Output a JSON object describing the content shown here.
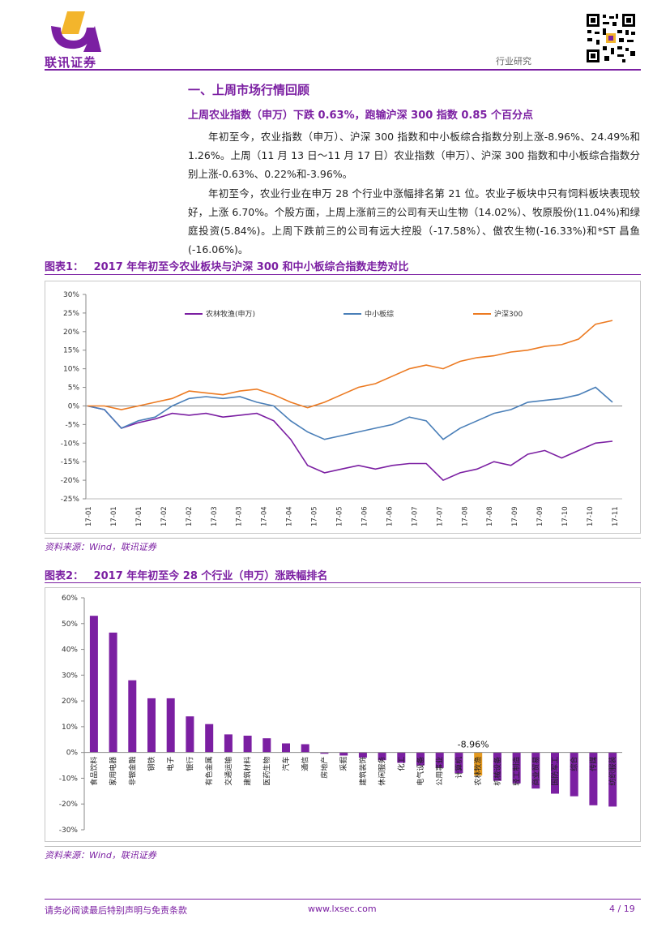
{
  "header": {
    "logo_text": "联讯证券",
    "category": "行业研究"
  },
  "section": {
    "title": "一、上周市场行情回顾",
    "subtitle": "上周农业指数（申万）下跌 0.63%，跑输沪深 300 指数 0.85 个百分点",
    "para1": "年初至今，农业指数（申万）、沪深 300 指数和中小板综合指数分别上涨-8.96%、24.49%和 1.26%。上周（11 月 13 日～11 月 17 日）农业指数（申万）、沪深 300 指数和中小板综合指数分别上涨-0.63%、0.22%和-3.96%。",
    "para2": "年初至今，农业行业在申万 28 个行业中涨幅排名第 21 位。农业子板块中只有饲料板块表现较好，上涨 6.70%。个股方面，上周上涨前三的公司有天山生物（14.02%）、牧原股份(11.04%)和绿庭投资(5.84%)。上周下跌前三的公司有远大控股（-17.58%）、傲农生物(-16.33%)和*ST 昌鱼(-16.06%)。"
  },
  "figure1": {
    "label": "图表1：",
    "title": "2017 年年初至今农业板块与沪深 300 和中小板综合指数走势对比",
    "source": "资料来源：Wind，联讯证券"
  },
  "figure2": {
    "label": "图表2：",
    "title": "2017 年年初至今 28 个行业（申万）涨跌幅排名",
    "source": "资料来源：Wind，联讯证券"
  },
  "chart_data": [
    {
      "type": "line",
      "title": "2017 年年初至今农业板块与沪深 300 和中小板综合指数走势对比",
      "ylim": [
        -25,
        30
      ],
      "yticks": [
        "30%",
        "25%",
        "20%",
        "15%",
        "10%",
        "5%",
        "0%",
        "-5%",
        "-10%",
        "-15%",
        "-20%",
        "-25%"
      ],
      "xticks": [
        "17-01",
        "17-01",
        "17-01",
        "17-02",
        "17-02",
        "17-03",
        "17-03",
        "17-04",
        "17-04",
        "17-05",
        "17-05",
        "17-06",
        "17-06",
        "17-07",
        "17-07",
        "17-08",
        "17-08",
        "17-09",
        "17-09",
        "17-10",
        "17-10",
        "17-11"
      ],
      "series": [
        {
          "name": "农林牧渔(申万)",
          "color": "#7b1fa2",
          "values": [
            0,
            -1,
            -6,
            -4.5,
            -3.5,
            -2,
            -2.5,
            -2,
            -3,
            -2.5,
            -2,
            -4,
            -9,
            -16,
            -18,
            -17,
            -16,
            -17,
            -16,
            -15.5,
            -15.5,
            -20,
            -18,
            -17,
            -15,
            -16,
            -13,
            -12,
            -14,
            -12,
            -10,
            -9.5
          ]
        },
        {
          "name": "中小板综",
          "color": "#4a7fb8",
          "values": [
            0,
            -1,
            -6,
            -4,
            -3,
            0,
            2,
            2.5,
            2,
            2.5,
            1,
            0,
            -4,
            -7,
            -9,
            -8,
            -7,
            -6,
            -5,
            -3,
            -4,
            -9,
            -6,
            -4,
            -2,
            -1,
            1,
            1.5,
            2,
            3,
            5,
            1
          ]
        },
        {
          "name": "沪深300",
          "color": "#ec7a21",
          "values": [
            0,
            0,
            -1,
            0,
            1,
            2,
            4,
            3.5,
            3,
            4,
            4.5,
            3,
            1,
            -0.5,
            1,
            3,
            5,
            6,
            8,
            10,
            11,
            10,
            12,
            13,
            13.5,
            14.5,
            15,
            16,
            16.5,
            18,
            22,
            23
          ]
        }
      ]
    },
    {
      "type": "bar",
      "title": "2017 年年初至今 28 个行业（申万）涨跌幅排名",
      "ylim": [
        -30,
        60
      ],
      "yticks": [
        "60%",
        "50%",
        "40%",
        "30%",
        "20%",
        "10%",
        "0%",
        "-10%",
        "-20%",
        "-30%"
      ],
      "highlight_label": "-8.96%",
      "bar_color": "#7b1fa2",
      "highlight_color": "#e69a1e",
      "categories": [
        "食品饮料",
        "家用电器",
        "非银金融",
        "钢铁",
        "电子",
        "银行",
        "有色金属",
        "交通运输",
        "建筑材料",
        "医药生物",
        "汽车",
        "通信",
        "房地产",
        "采掘",
        "建筑装饰",
        "休闲服务",
        "化工",
        "电气设备",
        "公用事业",
        "计算机",
        "农林牧渔",
        "机械设备",
        "轻工制造",
        "商业贸易",
        "国防军工",
        "综合",
        "传媒",
        "纺织服装"
      ],
      "values": [
        53,
        46.5,
        28,
        21,
        21,
        14,
        11,
        7,
        6.5,
        5.5,
        3.5,
        3.2,
        -0.5,
        -1.2,
        -2,
        -3,
        -4,
        -5,
        -6,
        -8,
        -8.96,
        -11,
        -12,
        -14,
        -16,
        -17,
        -20.5,
        -21
      ]
    }
  ],
  "footer": {
    "disclaimer": "请务必阅读最后特别声明与免责条款",
    "website": "www.lxsec.com",
    "page": "4 / 19"
  }
}
